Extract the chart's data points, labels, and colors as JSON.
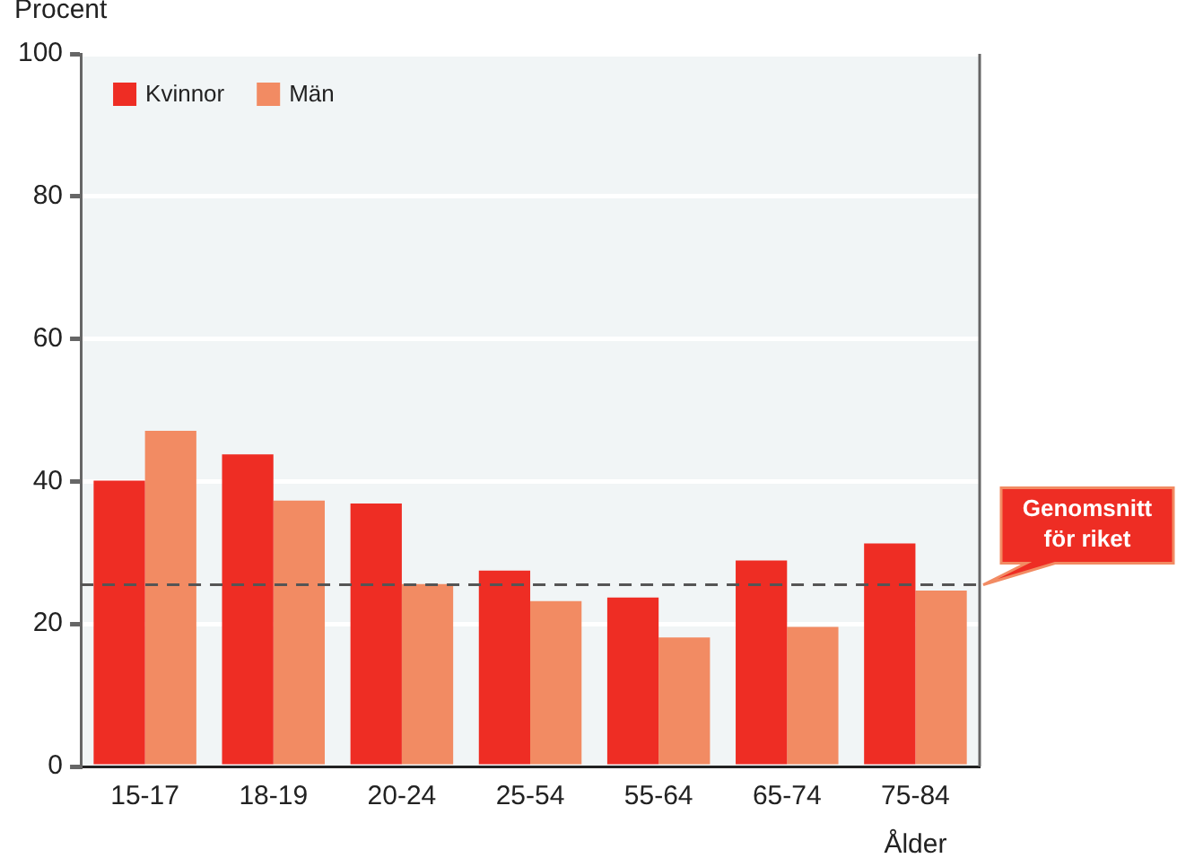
{
  "chart_data": {
    "type": "bar",
    "ylabel": "Procent",
    "xlabel": "Ålder",
    "categories": [
      "15-17",
      "18-19",
      "20-24",
      "25-54",
      "55-64",
      "65-74",
      "75-84"
    ],
    "series": [
      {
        "name": "Kvinnor",
        "color": "#ee2d24",
        "values": [
          40.1,
          43.8,
          36.9,
          27.5,
          23.7,
          28.9,
          31.3
        ]
      },
      {
        "name": "Män",
        "color": "#f28b63",
        "values": [
          47.1,
          37.3,
          25.6,
          23.2,
          18.1,
          19.6,
          24.7
        ]
      }
    ],
    "ylim": [
      0,
      100
    ],
    "yticks": [
      0,
      20,
      40,
      60,
      80,
      100
    ],
    "grid": "y",
    "legend": "top left",
    "ref_lines": [
      {
        "axis": "y",
        "value": 25.5,
        "label": "Genomsnitt för riket",
        "color": "#555555",
        "line_style": "dashed"
      }
    ]
  }
}
